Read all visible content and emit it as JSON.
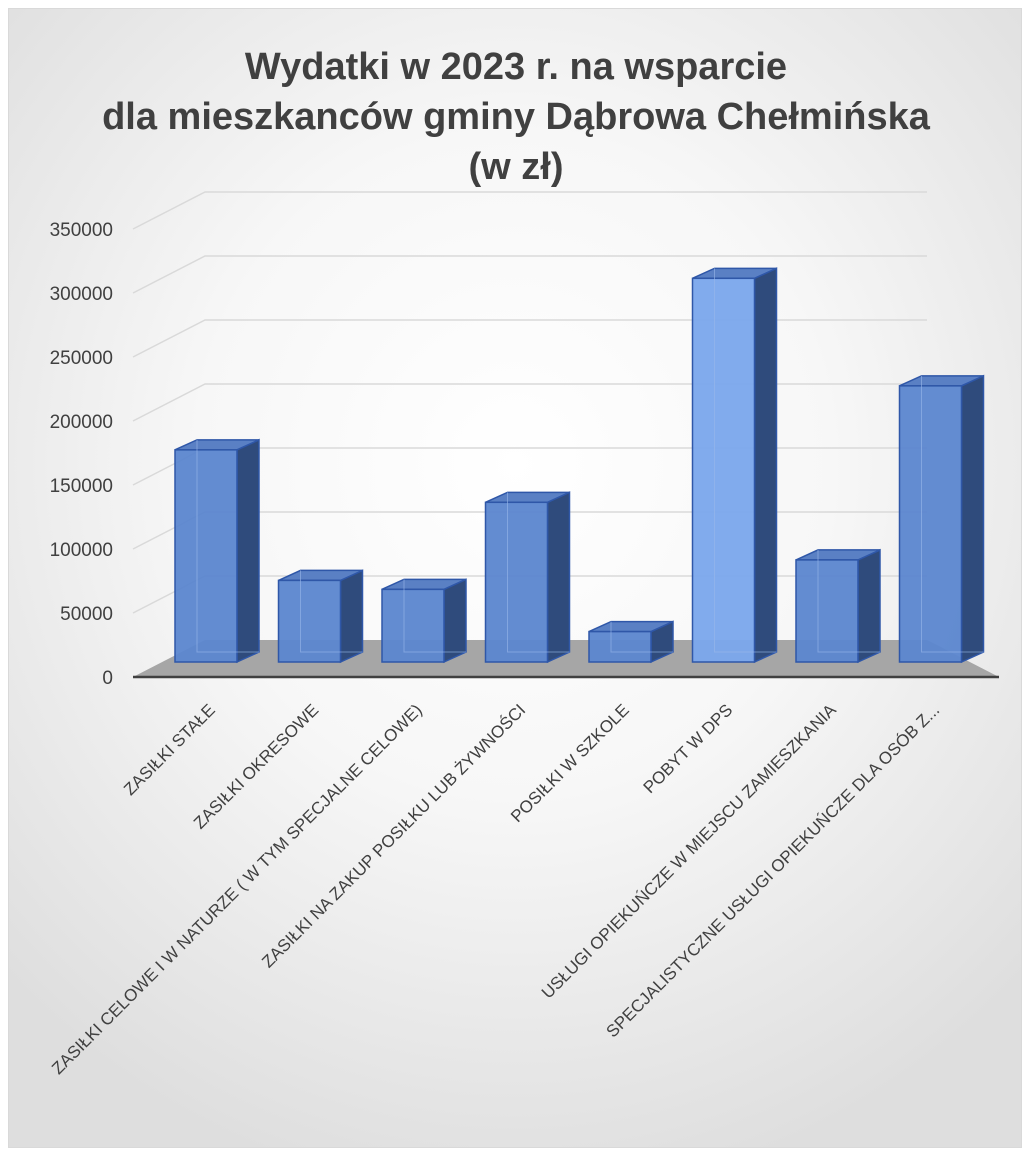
{
  "chart_data": {
    "type": "bar",
    "title_lines": [
      "Wydatki w 2023 r. na wsparcie",
      "dla mieszkanców gminy Dąbrowa Chełmińska",
      "(w zł)"
    ],
    "categories": [
      "ZASIŁKI STAŁE",
      "ZASIŁKI OKRESOWE",
      "ZASIŁKI CELOWE I W NATURZE ( W TYM SPECJALNE CELOWE)",
      "ZASIŁKI NA ZAKUP POSIŁKU LUB ŻYWNOŚCI",
      "POSIŁKI W SZKOLE",
      "POBYT W DPS",
      "USŁUGI OPIEKUŃCZE W MIEJSCU ZAMIESZKANIA",
      "SPECJALISTYCZNE USŁUGI OPIEKUŃCZE DLA OSÓB Z..."
    ],
    "values": [
      172000,
      70000,
      63000,
      131000,
      30000,
      306000,
      86000,
      222000
    ],
    "yticks": [
      "0",
      "50000",
      "100000",
      "150000",
      "200000",
      "250000",
      "300000",
      "350000"
    ],
    "ylim": [
      0,
      350000
    ],
    "grid": true,
    "style": "3d-clustered-column",
    "colors": {
      "bar_front": "#5b86cf",
      "bar_front_tall": "#7aa7ec",
      "bar_side": "#2f4b7c",
      "bar_top": "#5a80c4",
      "bar_edge": "#2f57a8",
      "floor": "#a6a6a6",
      "grid": "#d9d9d9",
      "text": "#404040"
    }
  }
}
